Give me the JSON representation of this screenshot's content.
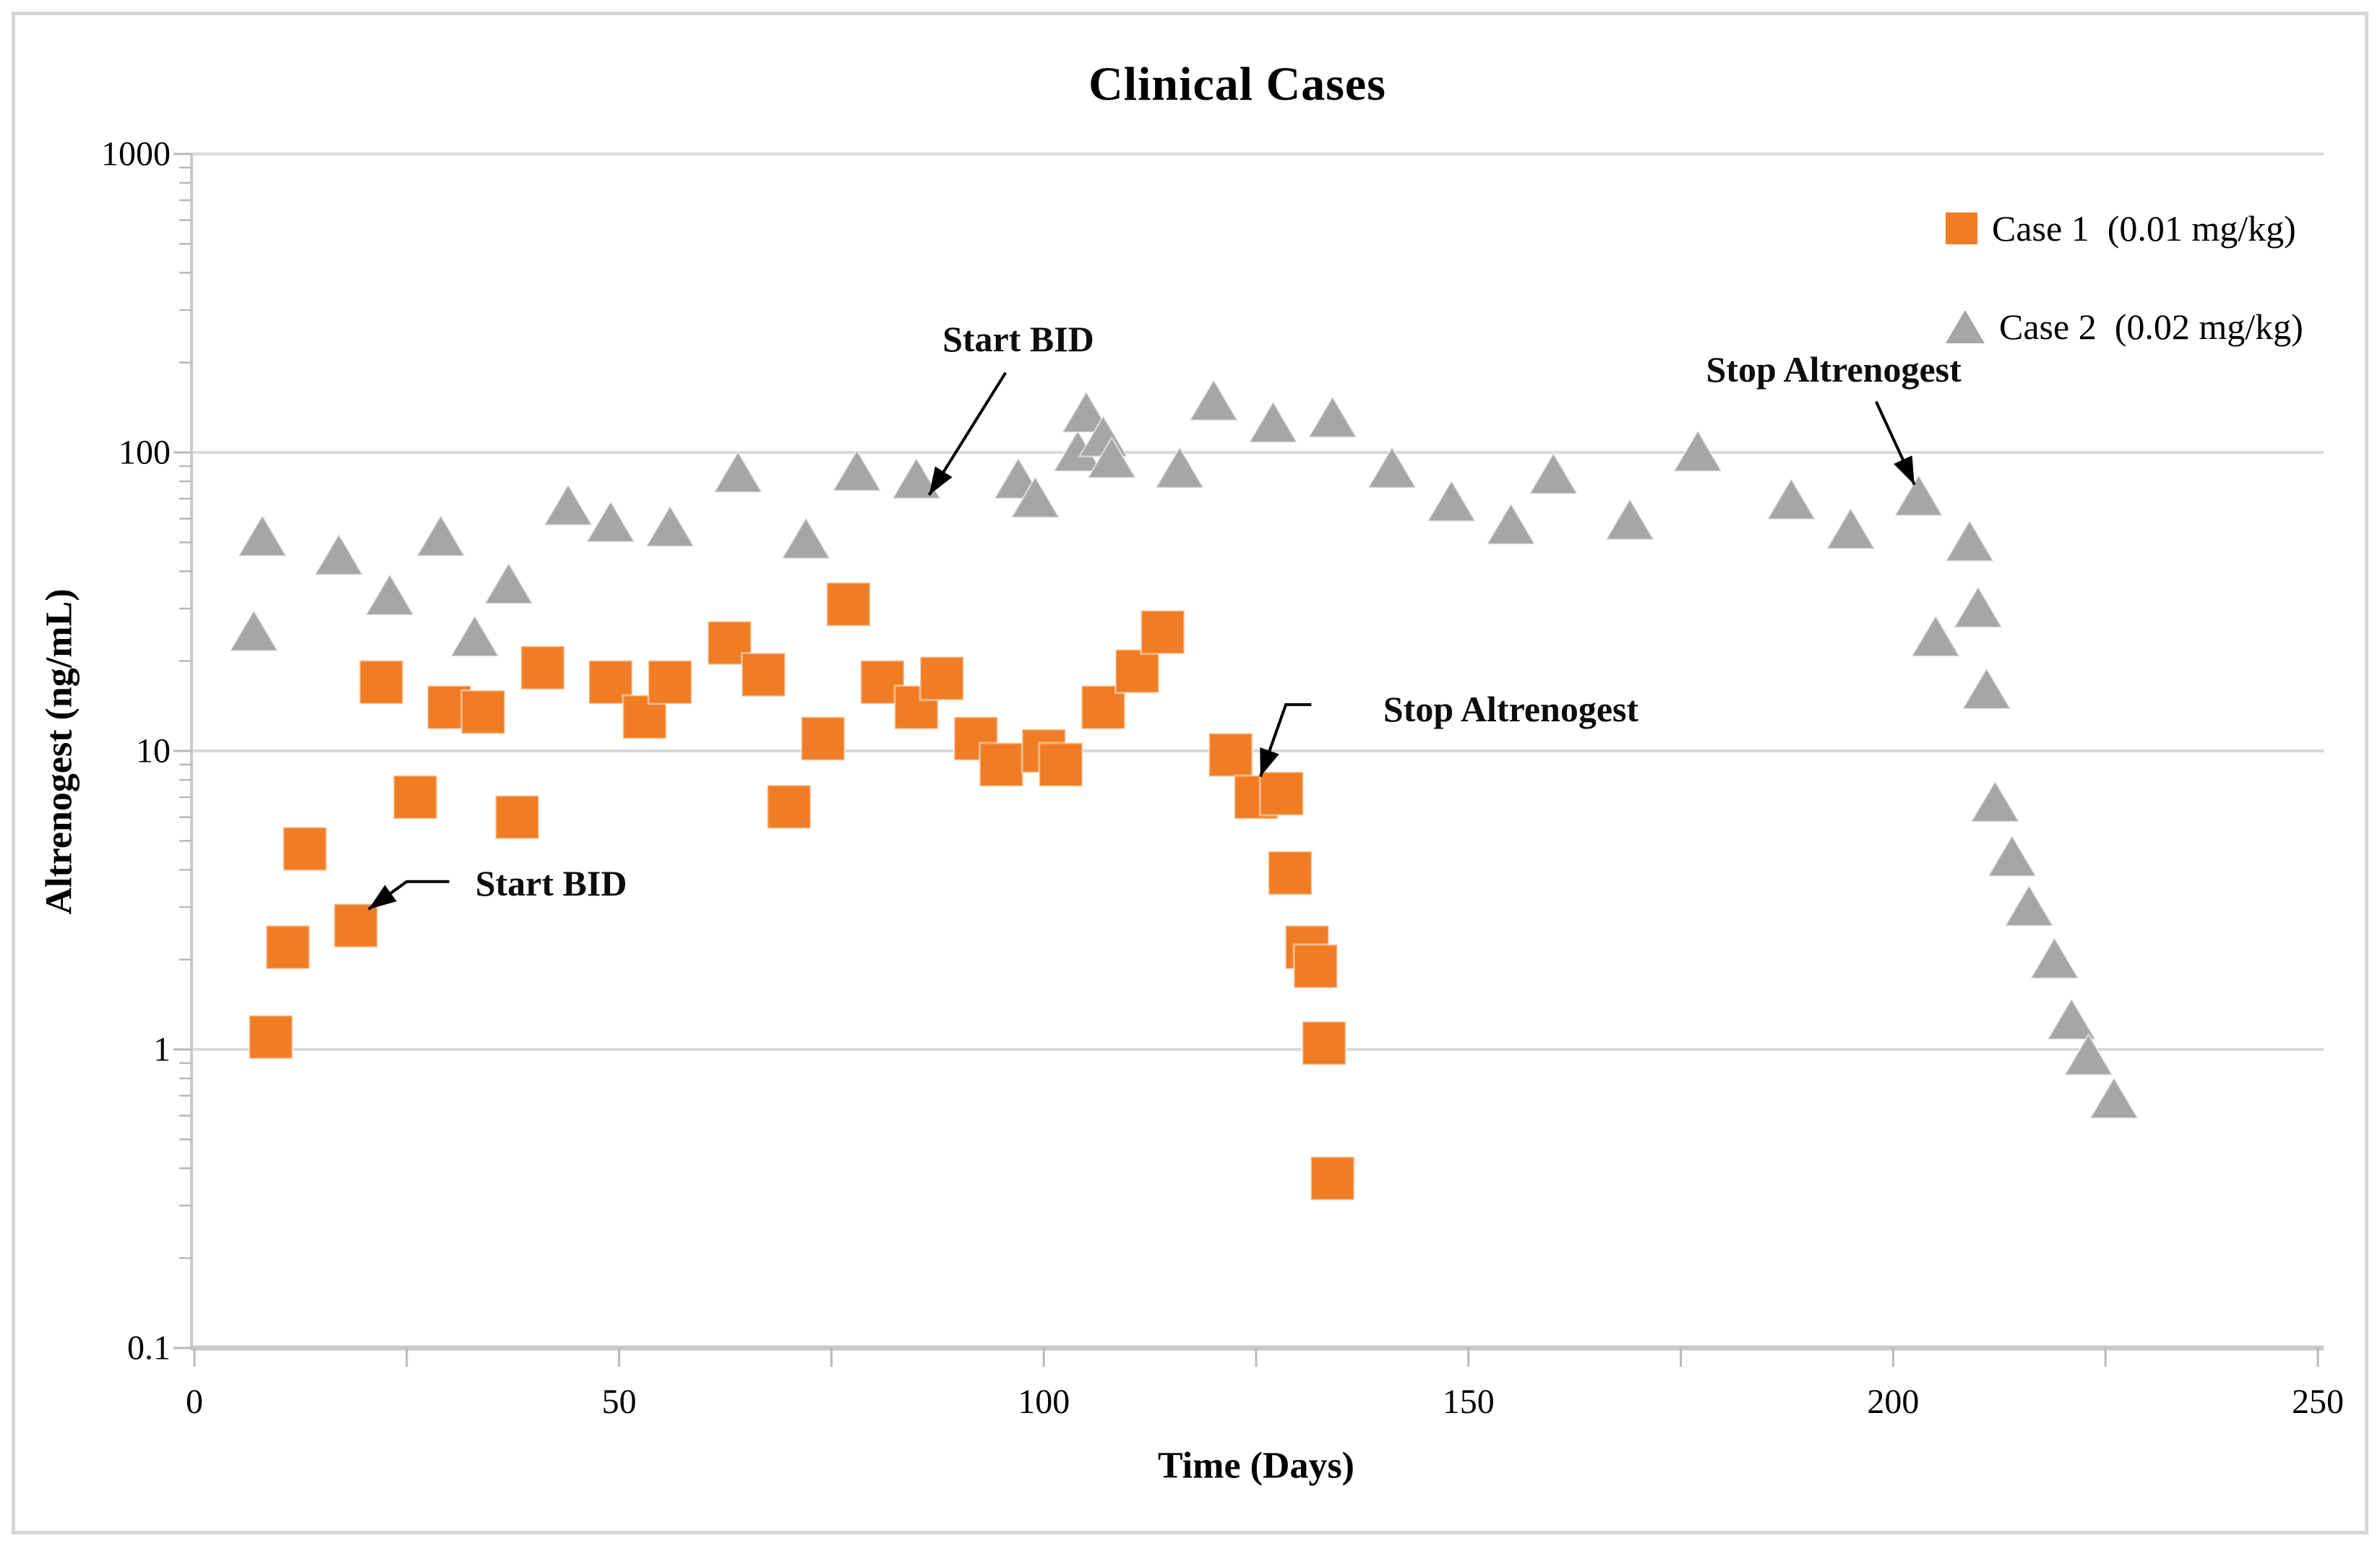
{
  "figure": {
    "title": "Clinical Cases"
  },
  "colors": {
    "case1": "#F07D23",
    "case2": "#A6A6A6",
    "gridline": "#D9D9D9",
    "axis": "#C9C9C9",
    "tick": "#B8B8B8",
    "text": "#000000",
    "figure_border": "#D6D6D6",
    "annotation": "#000000"
  },
  "axes": {
    "x": {
      "label": "Time (Days)",
      "min": 0,
      "max": 250,
      "minor_tick_step": 25,
      "labeled_tick_step": 50,
      "tick_labels": [
        "0",
        "50",
        "100",
        "150",
        "200",
        "250"
      ]
    },
    "y": {
      "label": "Altrenogest (ng/mL)",
      "scale": "log",
      "min": 0.1,
      "max": 1000,
      "tick_labels": [
        "1000",
        "100",
        "10",
        "1",
        "0.1"
      ],
      "tick_values": [
        1000,
        100,
        10,
        1,
        0.1
      ]
    }
  },
  "legend": {
    "position": "top-right",
    "items": [
      {
        "label": "Case 1  (0.01 mg/kg)",
        "marker": "square",
        "color": "#F07D23"
      },
      {
        "label": "Case 2  (0.02 mg/kg)",
        "marker": "triangle",
        "color": "#A6A6A6"
      }
    ]
  },
  "annotations": [
    {
      "id": "start-bid-case2",
      "text": "Start BID",
      "text_at": {
        "day": 97,
        "value": 240
      },
      "arrow": [
        [
          95.5,
          185
        ],
        [
          86.5,
          72
        ]
      ]
    },
    {
      "id": "stop-altrenogest-case2",
      "text": "Stop Altrenogest",
      "text_at": {
        "day": 193,
        "value": 190
      },
      "arrow": [
        [
          198,
          148
        ],
        [
          202.5,
          78
        ]
      ]
    },
    {
      "id": "start-bid-case1",
      "text": "Start BID",
      "text_at": {
        "day": 42,
        "value": 3.6
      },
      "arrow": [
        [
          30,
          3.65
        ],
        [
          25,
          3.65
        ],
        [
          20.5,
          2.95
        ]
      ]
    },
    {
      "id": "stop-altrenogest-case1",
      "text": "Stop Altrenogest",
      "text_at": {
        "day": 155,
        "value": 13.8
      },
      "arrow": [
        [
          131.5,
          14.3
        ],
        [
          128.5,
          14.3
        ],
        [
          125.5,
          8.2
        ]
      ]
    }
  ],
  "chart_data": {
    "type": "scatter",
    "title": "Clinical Cases",
    "xlabel": "Time (Days)",
    "ylabel": "Altrenogest (ng/mL)",
    "x_range": [
      0,
      250
    ],
    "y_range": [
      0.1,
      1000
    ],
    "y_scale": "log",
    "grid": "horizontal-decades",
    "legend_position": "top-right-inside",
    "series": [
      {
        "name": "Case 1  (0.01 mg/kg)",
        "marker": "square",
        "color": "#F07D23",
        "points": [
          [
            9,
            1.1
          ],
          [
            11,
            2.2
          ],
          [
            13,
            4.7
          ],
          [
            19,
            2.6
          ],
          [
            22,
            17
          ],
          [
            26,
            7
          ],
          [
            30,
            14
          ],
          [
            34,
            13.5
          ],
          [
            38,
            6
          ],
          [
            41,
            19
          ],
          [
            49,
            17
          ],
          [
            53,
            13
          ],
          [
            56,
            17
          ],
          [
            63,
            23
          ],
          [
            67,
            18
          ],
          [
            70,
            6.5
          ],
          [
            74,
            11
          ],
          [
            77,
            31
          ],
          [
            81,
            17
          ],
          [
            85,
            14
          ],
          [
            88,
            17.5
          ],
          [
            92,
            11
          ],
          [
            95,
            9
          ],
          [
            100,
            10
          ],
          [
            102,
            9
          ],
          [
            107,
            14
          ],
          [
            111,
            18.5
          ],
          [
            114,
            25
          ],
          [
            122,
            9.7
          ],
          [
            125,
            7
          ],
          [
            128,
            7.2
          ],
          [
            129,
            3.9
          ],
          [
            131,
            2.2
          ],
          [
            132,
            1.9
          ],
          [
            133,
            1.05
          ],
          [
            134,
            0.37
          ]
        ]
      },
      {
        "name": "Case 2  (0.02 mg/kg)",
        "marker": "triangle",
        "color": "#A6A6A6",
        "points": [
          [
            7,
            25
          ],
          [
            8,
            52
          ],
          [
            17,
            45
          ],
          [
            23,
            33
          ],
          [
            29,
            52
          ],
          [
            33,
            24
          ],
          [
            37,
            36
          ],
          [
            44,
            66
          ],
          [
            49,
            58
          ],
          [
            56,
            56
          ],
          [
            64,
            85
          ],
          [
            72,
            51
          ],
          [
            78,
            86
          ],
          [
            85,
            81
          ],
          [
            97,
            81
          ],
          [
            99,
            70
          ],
          [
            104,
            100
          ],
          [
            105,
            135
          ],
          [
            107,
            112
          ],
          [
            108,
            95
          ],
          [
            116,
            88
          ],
          [
            120,
            148
          ],
          [
            127,
            125
          ],
          [
            134,
            130
          ],
          [
            141,
            88
          ],
          [
            148,
            68
          ],
          [
            155,
            57
          ],
          [
            160,
            84
          ],
          [
            169,
            59
          ],
          [
            177,
            100
          ],
          [
            188,
            69
          ],
          [
            195,
            55
          ],
          [
            203,
            71
          ],
          [
            205,
            24
          ],
          [
            209,
            50
          ],
          [
            210,
            30
          ],
          [
            211,
            16
          ],
          [
            212,
            6.7
          ],
          [
            214,
            4.4
          ],
          [
            216,
            3.0
          ],
          [
            219,
            2.0
          ],
          [
            221,
            1.25
          ],
          [
            223,
            0.95
          ],
          [
            226,
            0.68
          ]
        ]
      }
    ]
  }
}
